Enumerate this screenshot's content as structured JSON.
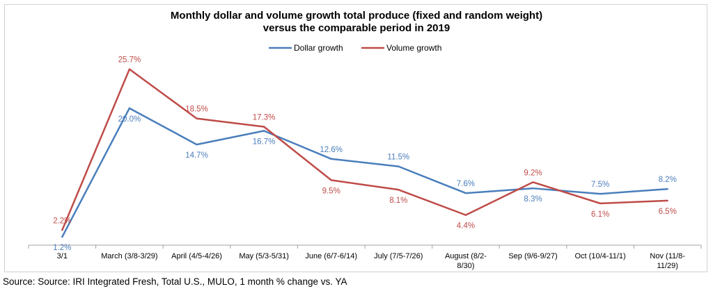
{
  "chart_data": {
    "type": "line",
    "title": "Monthly dollar and volume growth  total produce (fixed and random weight)",
    "subtitle": "versus the comparable period in 2019",
    "legend_position": "top-center",
    "grid": false,
    "categories": [
      [
        "3/1"
      ],
      [
        "March (3/8-3/29)"
      ],
      [
        "April (4/5-4/26)"
      ],
      [
        "May (5/3-5/31)"
      ],
      [
        "June (6/7-6/14)"
      ],
      [
        "July (7/5-7/26)"
      ],
      [
        "August (8/2-",
        "8/30)"
      ],
      [
        "Sep (9/6-9/27)"
      ],
      [
        "Oct (10/4-11/1)"
      ],
      [
        "Nov (11/8-",
        "11/29)"
      ]
    ],
    "series": [
      {
        "name": "Dollar growth",
        "color": "#4a7ebb",
        "values": [
          1.2,
          20.0,
          14.7,
          16.7,
          12.6,
          11.5,
          7.6,
          8.3,
          7.5,
          8.2
        ],
        "labels": [
          "1.2%",
          "20.0%",
          "14.7%",
          "16.7%",
          "12.6%",
          "11.5%",
          "7.6%",
          "8.3%",
          "7.5%",
          "8.2%"
        ],
        "label_pos": [
          "below",
          "below",
          "below",
          "below",
          "above",
          "above",
          "above",
          "below",
          "above",
          "above"
        ]
      },
      {
        "name": "Volume growth",
        "color": "#be4b48",
        "values": [
          2.2,
          25.7,
          18.5,
          17.3,
          9.5,
          8.1,
          4.4,
          9.2,
          6.1,
          6.5
        ],
        "labels": [
          "2.2%",
          "25.7%",
          "18.5%",
          "17.3%",
          "9.5%",
          "8.1%",
          "4.4%",
          "9.2%",
          "6.1%",
          "6.5%"
        ],
        "label_pos": [
          "above",
          "above",
          "above",
          "above",
          "below",
          "below",
          "below",
          "above",
          "below",
          "below"
        ]
      }
    ],
    "ylim": [
      0,
      28
    ],
    "xlabel": "",
    "ylabel": ""
  },
  "source_note": "Source: Source: IRI Integrated Fresh, Total U.S., MULO, 1 month % change vs. YA"
}
